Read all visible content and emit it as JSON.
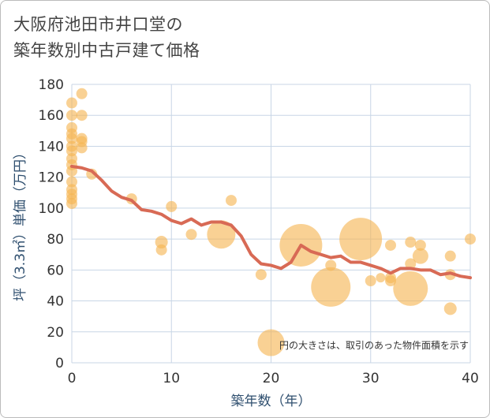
{
  "title_line1": "大阪府池田市井口堂の",
  "title_line2": "築年数別中古戸建て価格",
  "colors": {
    "bubble": "#f5b453",
    "line": "#d86a55",
    "grid": "#c8d6e6",
    "plot_bg": "#ffffff"
  },
  "chart_data": {
    "type": "scatter",
    "xlabel": "築年数（年）",
    "ylabel": "坪（3.3㎡）単価（万円）",
    "xlim": [
      0,
      40
    ],
    "ylim": [
      0,
      180
    ],
    "xticks": [
      0,
      10,
      20,
      30,
      40
    ],
    "yticks": [
      0,
      20,
      40,
      60,
      80,
      100,
      120,
      140,
      160,
      180
    ],
    "grid": true,
    "note": "円の大きさは、取引のあった物件面積を示す",
    "points": [
      {
        "x": 0,
        "y": 168,
        "r": 7
      },
      {
        "x": 0,
        "y": 160,
        "r": 7
      },
      {
        "x": 0,
        "y": 152,
        "r": 7
      },
      {
        "x": 0,
        "y": 148,
        "r": 7
      },
      {
        "x": 0,
        "y": 145,
        "r": 7
      },
      {
        "x": 0,
        "y": 140,
        "r": 7
      },
      {
        "x": 0,
        "y": 137,
        "r": 7
      },
      {
        "x": 0,
        "y": 132,
        "r": 7
      },
      {
        "x": 0,
        "y": 128,
        "r": 7
      },
      {
        "x": 0,
        "y": 124,
        "r": 7
      },
      {
        "x": 0,
        "y": 117,
        "r": 7
      },
      {
        "x": 0,
        "y": 112,
        "r": 7
      },
      {
        "x": 0,
        "y": 109,
        "r": 7
      },
      {
        "x": 0,
        "y": 106,
        "r": 7
      },
      {
        "x": 0,
        "y": 103,
        "r": 7
      },
      {
        "x": 1,
        "y": 174,
        "r": 7
      },
      {
        "x": 1,
        "y": 160,
        "r": 7
      },
      {
        "x": 1,
        "y": 145,
        "r": 7
      },
      {
        "x": 1,
        "y": 143,
        "r": 7
      },
      {
        "x": 1,
        "y": 139,
        "r": 7
      },
      {
        "x": 2,
        "y": 122,
        "r": 7
      },
      {
        "x": 6,
        "y": 106,
        "r": 7
      },
      {
        "x": 9,
        "y": 78,
        "r": 8
      },
      {
        "x": 9,
        "y": 73,
        "r": 7
      },
      {
        "x": 10,
        "y": 101,
        "r": 7
      },
      {
        "x": 12,
        "y": 83,
        "r": 7
      },
      {
        "x": 15,
        "y": 83,
        "r": 18
      },
      {
        "x": 16,
        "y": 105,
        "r": 7
      },
      {
        "x": 19,
        "y": 57,
        "r": 7
      },
      {
        "x": 20,
        "y": 13,
        "r": 17
      },
      {
        "x": 23,
        "y": 76,
        "r": 27
      },
      {
        "x": 26,
        "y": 63,
        "r": 7
      },
      {
        "x": 26,
        "y": 49,
        "r": 25
      },
      {
        "x": 29,
        "y": 80,
        "r": 27
      },
      {
        "x": 30,
        "y": 53,
        "r": 7
      },
      {
        "x": 31,
        "y": 55,
        "r": 6
      },
      {
        "x": 32,
        "y": 76,
        "r": 7
      },
      {
        "x": 32,
        "y": 55,
        "r": 7
      },
      {
        "x": 32,
        "y": 53,
        "r": 7
      },
      {
        "x": 34,
        "y": 78,
        "r": 7
      },
      {
        "x": 34,
        "y": 64,
        "r": 7
      },
      {
        "x": 34,
        "y": 48,
        "r": 22
      },
      {
        "x": 35,
        "y": 76,
        "r": 7
      },
      {
        "x": 35,
        "y": 69,
        "r": 10
      },
      {
        "x": 38,
        "y": 69,
        "r": 7
      },
      {
        "x": 38,
        "y": 57,
        "r": 7
      },
      {
        "x": 38,
        "y": 35,
        "r": 8
      },
      {
        "x": 40,
        "y": 80,
        "r": 7
      }
    ],
    "trend": {
      "x": [
        0,
        1,
        2,
        3,
        4,
        5,
        6,
        7,
        8,
        9,
        10,
        11,
        12,
        13,
        14,
        15,
        16,
        17,
        18,
        19,
        20,
        21,
        22,
        23,
        24,
        25,
        26,
        27,
        28,
        29,
        30,
        31,
        32,
        33,
        34,
        35,
        36,
        37,
        38,
        39,
        40
      ],
      "y": [
        127,
        126,
        124,
        118,
        111,
        107,
        105,
        99,
        98,
        96,
        92,
        90,
        93,
        89,
        91,
        91,
        89,
        82,
        70,
        64,
        63,
        61,
        65,
        76,
        72,
        70,
        68,
        69,
        65,
        65,
        63,
        61,
        58,
        61,
        61,
        60,
        60,
        57,
        58,
        56,
        55
      ]
    }
  }
}
